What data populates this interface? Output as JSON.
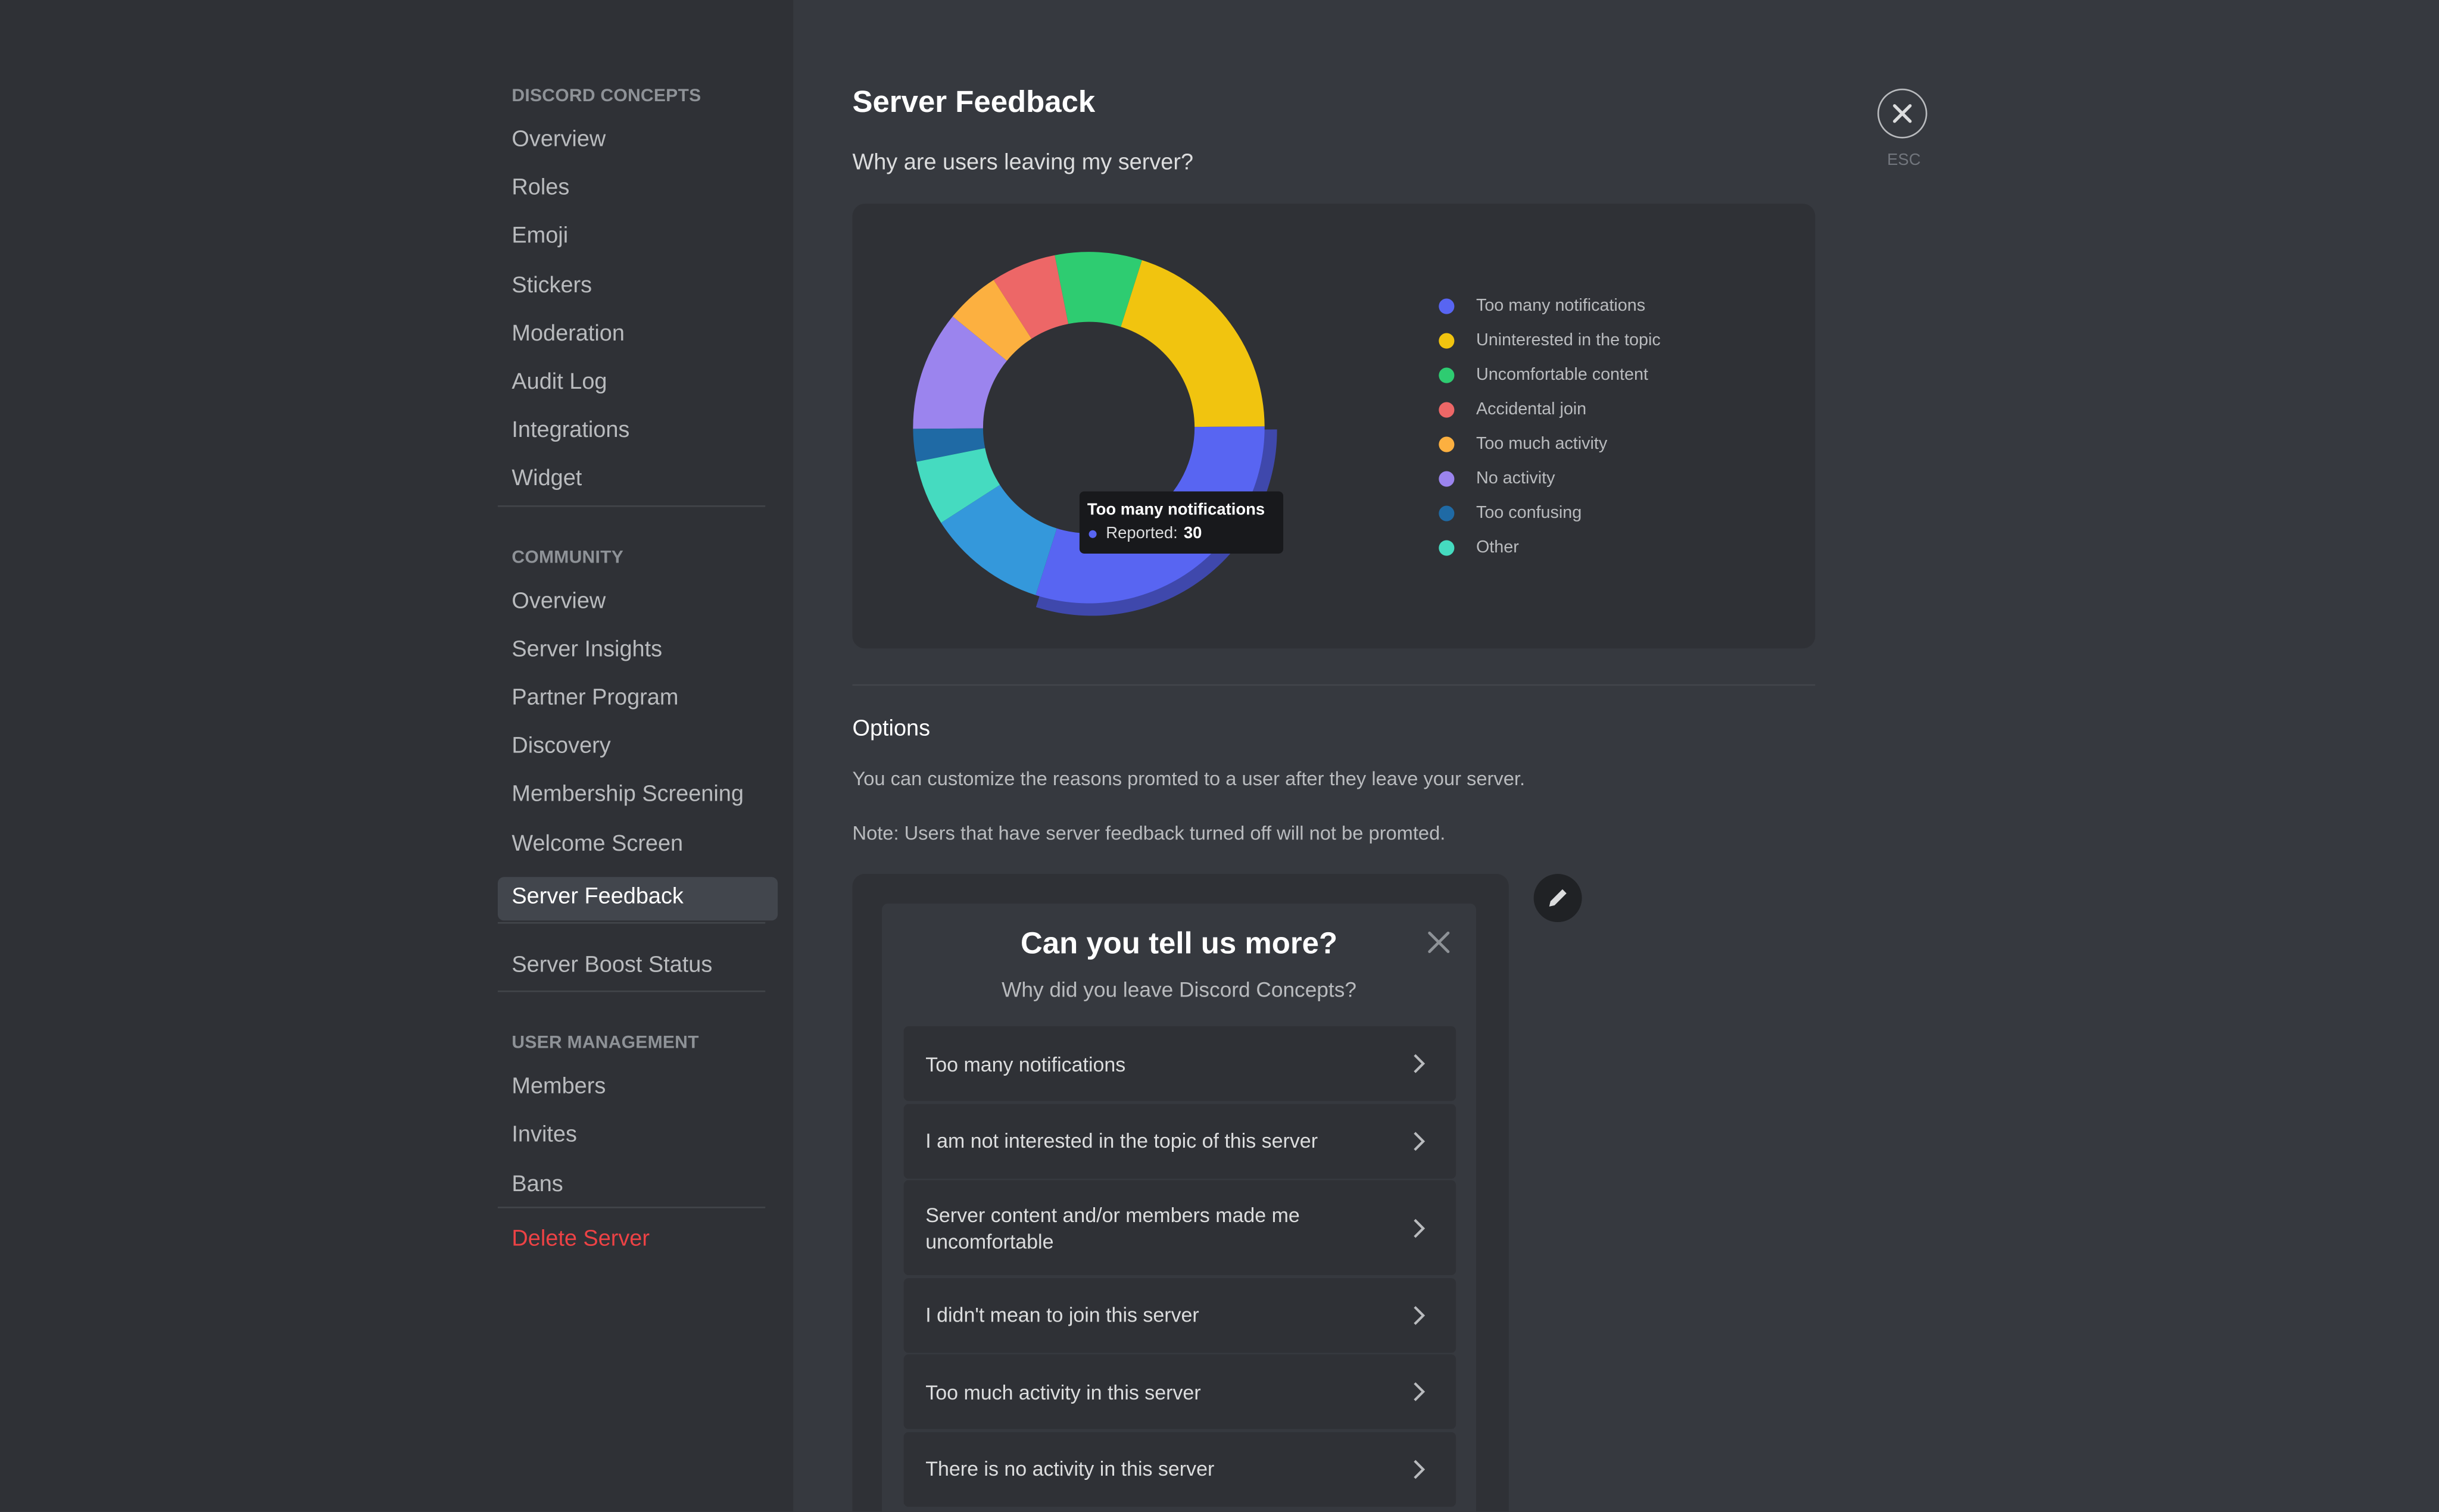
{
  "sidebar": {
    "groups": [
      {
        "header": "DISCORD CONCEPTS",
        "items": [
          "Overview",
          "Roles",
          "Emoji",
          "Stickers",
          "Moderation",
          "Audit Log",
          "Integrations",
          "Widget"
        ]
      },
      {
        "header": "COMMUNITY",
        "items": [
          "Overview",
          "Server Insights",
          "Partner Program",
          "Discovery",
          "Membership Screening",
          "Welcome Screen",
          "Server Feedback"
        ]
      },
      {
        "items": [
          "Server Boost Status"
        ]
      },
      {
        "header": "USER MANAGEMENT",
        "items": [
          "Members",
          "Invites",
          "Bans"
        ]
      }
    ],
    "danger": "Delete Server"
  },
  "page": {
    "title": "Server Feedback",
    "question": "Why are users leaving my server?",
    "close_label": "ESC"
  },
  "chart": {
    "type": "pie",
    "categories": [
      "Too many notifications",
      "Uninterested in the topic",
      "Uncomfortable content",
      "Accidental join",
      "Too much activity",
      "No activity",
      "Too confusing",
      "Other",
      null
    ],
    "values": [
      30,
      20,
      8,
      6,
      5,
      11,
      3,
      6,
      11
    ],
    "colors": [
      "#5865f2",
      "#f1c40f",
      "#2ecc71",
      "#ed6767",
      "#fcb040",
      "#9b84ee",
      "#1f6aa5",
      "#45dbc0",
      "#3498db"
    ],
    "tooltip_label": "Reported:"
  },
  "options": {
    "title": "Options",
    "description": "You can customize the reasons promted to a user after they leave your server.",
    "note": "Note: Users that have server feedback turned off will not be promted.",
    "preview": {
      "title": "Can you tell us more?",
      "subtitle": "Why did you leave Discord Concepts?",
      "reasons": [
        "Too many notifications",
        "I am not interested in the topic of this server",
        "Server content and/or members made me uncomfortable",
        "I didn't mean to join this server",
        "Too much activity in this server",
        "There is no activity in this server"
      ]
    }
  }
}
